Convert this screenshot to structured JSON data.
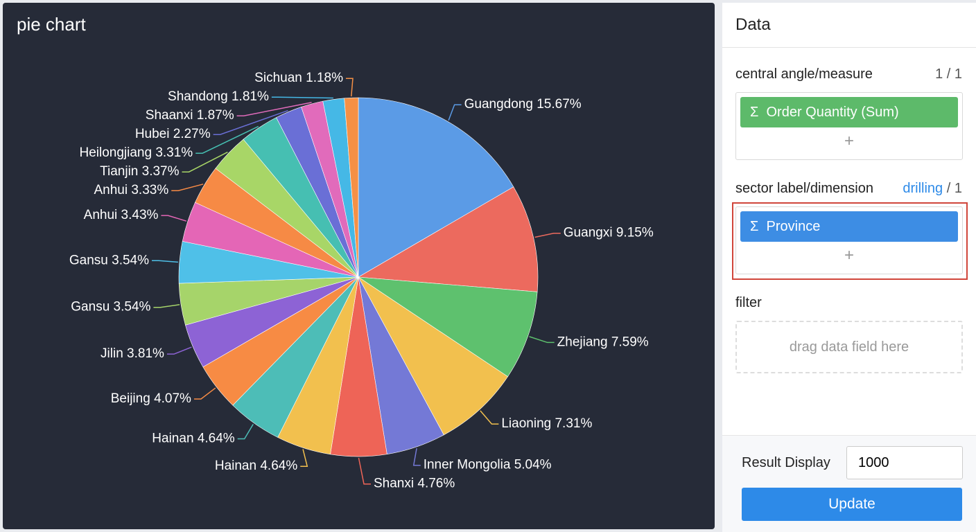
{
  "chart_data": {
    "type": "pie",
    "title": "pie chart",
    "categories": [
      "Guangdong",
      "Guangxi",
      "Zhejiang",
      "Liaoning",
      "Inner Mongolia",
      "Shanxi",
      "Hainan",
      "Hainan",
      "Beijing",
      "Jilin",
      "Gansu",
      "Gansu",
      "Anhui",
      "Anhui",
      "Tianjin",
      "Heilongjiang",
      "Hubei",
      "Shaanxi",
      "Shandong",
      "Sichuan"
    ],
    "values": [
      15.67,
      9.15,
      7.59,
      7.31,
      5.04,
      4.76,
      4.64,
      4.64,
      4.07,
      3.81,
      3.54,
      3.54,
      3.43,
      3.33,
      3.37,
      3.31,
      2.27,
      1.87,
      1.81,
      1.18
    ],
    "value_labels": [
      "15.67%",
      "9.15%",
      "7.59%",
      "7.31%",
      "5.04%",
      "4.76%",
      "4.64%",
      "4.64%",
      "4.07%",
      "3.81%",
      "3.54%",
      "3.54%",
      "3.43%",
      "3.33%",
      "3.37%",
      "3.31%",
      "2.27%",
      "1.87%",
      "1.81%",
      "1.18%"
    ],
    "colors": [
      "#5b9be6",
      "#ec6a5e",
      "#5ec16e",
      "#f2c04e",
      "#7479d6",
      "#ee6457",
      "#f2c04e",
      "#4dbdb7",
      "#f78b44",
      "#8d63d5",
      "#a6d46a",
      "#4fc0e8",
      "#e466b6",
      "#f68a45",
      "#a8d667",
      "#46bfb2",
      "#6a6fd6",
      "#e16bbb",
      "#45b8e6",
      "#f59045"
    ]
  },
  "panel": {
    "title": "Data",
    "measure": {
      "label": "central angle/measure",
      "count": "1 / 1",
      "icon": "Σ",
      "field": "Order Quantity (Sum)",
      "add": "+"
    },
    "dimension": {
      "label": "sector label/dimension",
      "link": "drilling",
      "count": "/ 1",
      "icon": "Σ",
      "field": "Province",
      "add": "+"
    },
    "filter": {
      "label": "filter",
      "placeholder": "drag data field here"
    },
    "result": {
      "label": "Result Display",
      "value": "1000",
      "button": "Update"
    }
  }
}
